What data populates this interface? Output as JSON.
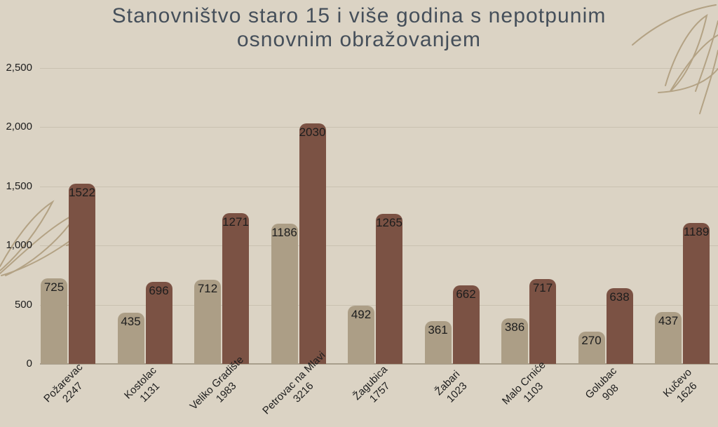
{
  "title": {
    "lines": [
      "Stanovništvo staro 15 i više godina s nepotpunim",
      "osnovnim obražovanjem"
    ]
  },
  "colors": {
    "background": "#dbd3c4",
    "bar_light": "#ac9e86",
    "bar_dark": "#7b5244",
    "title_text": "#454f5a",
    "axis_text": "#1d1d1d",
    "value_text": "#1d1d1d",
    "gridline": "#c9c1b1",
    "axis_line": "#a89e8c",
    "decoration": "#b3a284"
  },
  "chart_data": {
    "type": "bar",
    "title": "Stanovništvo staro 15 i više godina s nepotpunim osnovnim obražovanjem",
    "categories": [
      "Požarevac",
      "Kostolac",
      "Veliko Gradište",
      "Petrovac na Mlavi",
      "Žagubica",
      "Žabari",
      "Malo Crniće",
      "Golubac",
      "Kučevo"
    ],
    "category_totals": [
      "2247",
      "1131",
      "1983",
      "3216",
      "1757",
      "1023",
      "1103",
      "908",
      "1626"
    ],
    "series": [
      {
        "name": "light",
        "values": [
          725,
          435,
          712,
          1186,
          492,
          361,
          386,
          270,
          437
        ]
      },
      {
        "name": "dark",
        "values": [
          1522,
          696,
          1271,
          2030,
          1265,
          662,
          717,
          638,
          1189
        ]
      }
    ],
    "ylim": [
      0,
      2500
    ],
    "ytick_values": [
      0,
      500,
      1000,
      1500,
      2000,
      2500
    ],
    "ytick_labels": [
      "0",
      "500",
      "1,000",
      "1,500",
      "2,000",
      "2,500"
    ],
    "grid": true,
    "legend_position": "none",
    "xtick_rotation_deg": -45,
    "value_labels": "inside-top"
  }
}
